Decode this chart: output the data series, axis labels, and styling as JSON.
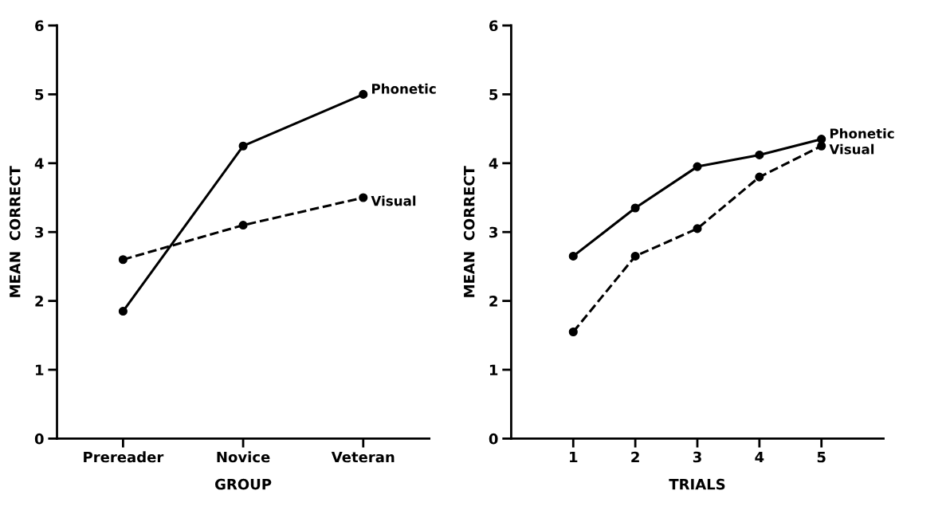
{
  "chart_data": [
    {
      "type": "line",
      "xlabel": "GROUP",
      "ylabel": "MEAN  CORRECT",
      "categories": [
        "Prereader",
        "Novice",
        "Veteran"
      ],
      "ylim": [
        0,
        6
      ],
      "yticks": [
        0,
        1,
        2,
        3,
        4,
        5,
        6
      ],
      "grid": false,
      "legend": false,
      "marker": "circle",
      "series": [
        {
          "name": "Phonetic",
          "color": "#000000",
          "line_style": "solid",
          "values": [
            1.85,
            4.25,
            5.0
          ]
        },
        {
          "name": "Visual",
          "color": "#000000",
          "line_style": "dashed",
          "values": [
            2.6,
            3.1,
            3.5
          ]
        }
      ]
    },
    {
      "type": "line",
      "xlabel": "TRIALS",
      "ylabel": "MEAN  CORRECT",
      "x": [
        1,
        2,
        3,
        4,
        5
      ],
      "xlim": [
        0,
        6
      ],
      "xticks": [
        1,
        2,
        3,
        4,
        5
      ],
      "ylim": [
        0,
        6
      ],
      "yticks": [
        0,
        1,
        2,
        3,
        4,
        5,
        6
      ],
      "grid": false,
      "legend": false,
      "marker": "circle",
      "series": [
        {
          "name": "Phonetic",
          "color": "#000000",
          "line_style": "solid",
          "values": [
            2.65,
            3.35,
            3.95,
            4.12,
            4.35
          ]
        },
        {
          "name": "Visual",
          "color": "#000000",
          "line_style": "dashed",
          "values": [
            1.55,
            2.65,
            3.05,
            3.8,
            4.25
          ]
        }
      ]
    }
  ]
}
